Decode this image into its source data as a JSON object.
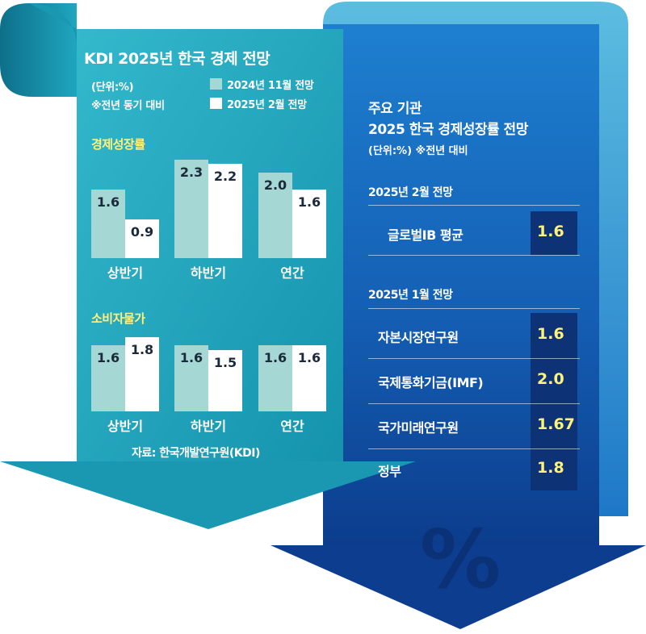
{
  "left": {
    "title": "KDI 2025년 한국 경제 전망",
    "unit": "(단위:%)",
    "note": "※전년 동기 대비",
    "legend_prev": "2024년 11월 전망",
    "legend_cur": "2025년  2월 전망",
    "source": "자료: 한국개발연구원(KDI)"
  },
  "right": {
    "title1": "주요 기관",
    "title2": "2025 한국 경제성장률 전망",
    "unit": "(단위:%)  ※전년 대비",
    "section_feb": "2025년 2월 전망",
    "section_jan": "2025년 1월 전망"
  },
  "chart_data": [
    {
      "type": "bar",
      "title": "경제성장률",
      "categories": [
        "상반기",
        "하반기",
        "연간"
      ],
      "series": [
        {
          "name": "2024년 11월 전망",
          "values": [
            1.6,
            2.3,
            2.0
          ],
          "labels": [
            "1.6",
            "2.3",
            "2.0"
          ]
        },
        {
          "name": "2025년  2월 전망",
          "values": [
            0.9,
            2.2,
            1.6
          ],
          "labels": [
            "0.9",
            "2.2",
            "1.6"
          ]
        }
      ],
      "colors": [
        "#a5d7d5",
        "#ffffff"
      ]
    },
    {
      "type": "bar",
      "title": "소비자물가",
      "categories": [
        "상반기",
        "하반기",
        "연간"
      ],
      "series": [
        {
          "name": "2024년 11월 전망",
          "values": [
            1.6,
            1.6,
            1.6
          ],
          "labels": [
            "1.6",
            "1.6",
            "1.6"
          ]
        },
        {
          "name": "2025년  2월 전망",
          "values": [
            1.8,
            1.5,
            1.6
          ],
          "labels": [
            "1.8",
            "1.5",
            "1.6"
          ]
        }
      ],
      "colors": [
        "#a5d7d5",
        "#ffffff"
      ]
    },
    {
      "type": "table",
      "title": "2025 한국 경제성장률 전망",
      "rows": [
        {
          "label": "글로벌IB 평균",
          "value": "1.6"
        },
        {
          "label": "자본시장연구원",
          "value": "1.6"
        },
        {
          "label": "국제통화기금(IMF)",
          "value": "2.0"
        },
        {
          "label": "국가미래연구원",
          "value": "1.67"
        },
        {
          "label": "정부",
          "value": "1.8"
        }
      ]
    }
  ],
  "colors": {
    "teal": "#1fa6be",
    "teal_dark": "#158aa3",
    "blue": "#1660b8",
    "navy": "#0b3a86",
    "yellow": "#fff27a",
    "bar_prev": "#a5d7d5",
    "bar_cur": "#ffffff"
  },
  "decor": {
    "symbol": "%"
  }
}
